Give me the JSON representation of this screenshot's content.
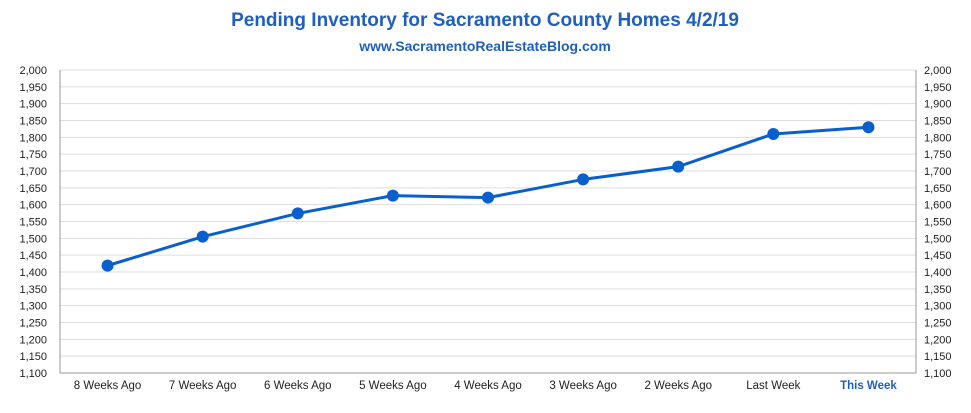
{
  "chart_data": {
    "type": "line",
    "title": "Pending Inventory for Sacramento County Homes 4/2/19",
    "subtitle": "www.SacramentoRealEstateBlog.com",
    "categories": [
      "8 Weeks Ago",
      "7 Weeks Ago",
      "6 Weeks Ago",
      "5 Weeks Ago",
      "4 Weeks Ago",
      "3 Weeks Ago",
      "2 Weeks Ago",
      "Last Week",
      "This Week"
    ],
    "highlight_category": "This Week",
    "series": [
      {
        "values": [
          1419,
          1505,
          1574,
          1627,
          1621,
          1675,
          1713,
          1810,
          1830
        ]
      }
    ],
    "ylim": [
      1100,
      2000
    ],
    "ytick_step": 50,
    "ytick_labels": [
      "1,100",
      "1,150",
      "1,200",
      "1,250",
      "1,300",
      "1,350",
      "1,400",
      "1,450",
      "1,500",
      "1,550",
      "1,600",
      "1,650",
      "1,700",
      "1,750",
      "1,800",
      "1,850",
      "1,900",
      "1,950",
      "2,000"
    ],
    "secondary_y_axis": true,
    "grid": true,
    "legend": "none",
    "colors": {
      "line": "#0a5fcf",
      "title": "#1f5fbf",
      "highlight": "#1f5fbf",
      "grid": "#dddddd",
      "axis": "#9a9a9a"
    }
  }
}
